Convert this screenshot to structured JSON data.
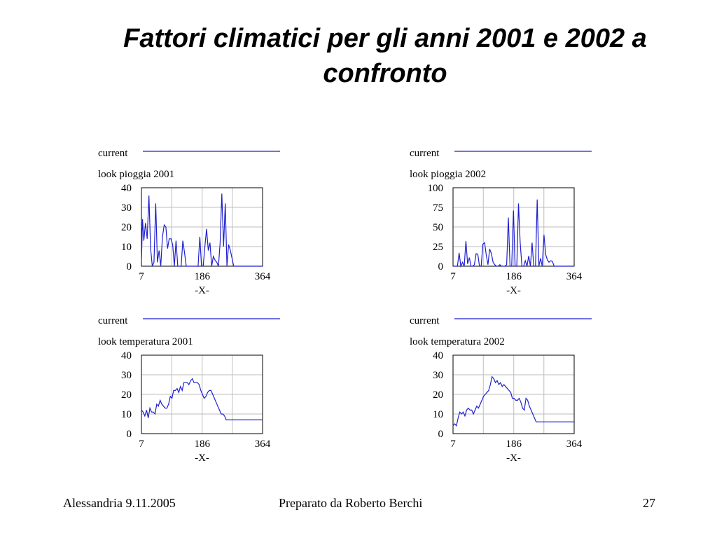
{
  "title": "Fattori climatici per gli anni 2001 e 2002 a confronto",
  "footer": {
    "left": "Alessandria 9.11.2005",
    "center": "Preparato da Roberto Berchi",
    "right": "27"
  },
  "colors": {
    "line": "#1f1fd0",
    "grid": "#bdbdbd",
    "frame": "#000000"
  },
  "chart_data": [
    {
      "type": "line",
      "legend_label": "current",
      "series_name": "look pioggia 2001",
      "xlabel": "-X-",
      "xlim": [
        7,
        364
      ],
      "xticks": [
        7,
        186,
        364
      ],
      "ylim": [
        0,
        40
      ],
      "yticks": [
        0,
        10,
        20,
        30,
        40
      ],
      "grid": true,
      "series": [
        {
          "name": "look pioggia 2001",
          "x": [
            7,
            10,
            14,
            19,
            24,
            29,
            34,
            39,
            44,
            49,
            54,
            59,
            64,
            69,
            74,
            79,
            84,
            89,
            94,
            99,
            104,
            109,
            114,
            119,
            124,
            129,
            134,
            139,
            144,
            149,
            154,
            159,
            164,
            169,
            174,
            179,
            184,
            189,
            194,
            199,
            204,
            209,
            214,
            219,
            224,
            229,
            234,
            239,
            244,
            249,
            254,
            259,
            264,
            269,
            274,
            279,
            284,
            289,
            294,
            299,
            304,
            309,
            314,
            319,
            324,
            329,
            334,
            339,
            344,
            349,
            354,
            359,
            364
          ],
          "values": [
            2,
            24,
            13,
            22,
            14,
            36,
            9,
            0,
            2,
            32,
            2,
            8,
            0,
            15,
            21,
            20,
            9,
            14,
            14,
            11,
            0,
            13,
            0,
            0,
            0,
            13,
            7,
            0,
            0,
            0,
            0,
            0,
            0,
            0,
            0,
            15,
            0,
            0,
            10,
            19,
            8,
            12,
            0,
            5,
            3,
            2,
            0,
            12,
            37,
            10,
            32,
            0,
            11,
            8,
            4,
            0,
            0,
            0,
            0,
            0,
            0,
            0,
            0,
            0,
            0,
            0,
            0,
            0,
            0,
            0,
            0,
            0,
            0
          ]
        }
      ]
    },
    {
      "type": "line",
      "legend_label": "current",
      "series_name": "look pioggia 2002",
      "xlabel": "-X-",
      "xlim": [
        7,
        364
      ],
      "xticks": [
        7,
        186,
        364
      ],
      "ylim": [
        0,
        100
      ],
      "yticks": [
        0,
        25,
        50,
        75,
        100
      ],
      "grid": true,
      "series": [
        {
          "name": "look pioggia 2002",
          "x": [
            7,
            15,
            20,
            25,
            30,
            35,
            40,
            45,
            50,
            55,
            60,
            65,
            70,
            75,
            80,
            85,
            90,
            95,
            100,
            105,
            110,
            115,
            120,
            125,
            130,
            135,
            140,
            145,
            150,
            155,
            160,
            165,
            170,
            175,
            180,
            185,
            190,
            195,
            200,
            205,
            210,
            215,
            220,
            225,
            230,
            235,
            240,
            245,
            250,
            255,
            260,
            265,
            270,
            275,
            280,
            285,
            290,
            295,
            300,
            305,
            310,
            315,
            320,
            325,
            330,
            335,
            340,
            345,
            350,
            355,
            360,
            364
          ],
          "values": [
            0,
            0,
            0,
            17,
            0,
            5,
            0,
            32,
            3,
            11,
            0,
            0,
            2,
            16,
            15,
            0,
            0,
            28,
            30,
            14,
            2,
            22,
            16,
            5,
            2,
            0,
            0,
            2,
            0,
            0,
            0,
            2,
            62,
            0,
            0,
            71,
            0,
            0,
            80,
            30,
            0,
            0,
            7,
            0,
            13,
            0,
            30,
            0,
            0,
            85,
            0,
            10,
            0,
            40,
            15,
            8,
            5,
            7,
            6,
            0,
            0,
            0,
            0,
            0,
            0,
            0,
            0,
            0,
            0,
            0,
            0,
            0
          ]
        }
      ]
    },
    {
      "type": "line",
      "legend_label": "current",
      "series_name": "look temperatura 2001",
      "xlabel": "-X-",
      "xlim": [
        7,
        364
      ],
      "xticks": [
        7,
        186,
        364
      ],
      "ylim": [
        0,
        40
      ],
      "yticks": [
        0,
        10,
        20,
        30,
        40
      ],
      "grid": true,
      "series": [
        {
          "name": "look temperatura 2001",
          "x": [
            7,
            12,
            17,
            22,
            27,
            32,
            37,
            42,
            47,
            52,
            57,
            62,
            67,
            72,
            77,
            82,
            87,
            92,
            97,
            102,
            107,
            112,
            117,
            122,
            127,
            132,
            137,
            142,
            147,
            152,
            157,
            162,
            167,
            172,
            177,
            182,
            187,
            192,
            197,
            202,
            207,
            212,
            217,
            222,
            227,
            232,
            237,
            242,
            247,
            252,
            257,
            262,
            267,
            272,
            277,
            282,
            287,
            292,
            297,
            302,
            307,
            312,
            317,
            322,
            327,
            332,
            337,
            342,
            347,
            352,
            357,
            364
          ],
          "values": [
            12,
            11,
            9,
            12,
            8,
            13,
            11,
            11,
            10,
            15,
            14,
            17,
            15,
            14,
            13,
            13,
            15,
            19,
            18,
            22,
            22,
            23,
            21,
            24,
            22,
            26,
            26,
            26,
            25,
            27,
            28,
            26,
            26,
            26,
            25,
            22,
            20,
            18,
            19,
            21,
            22,
            22,
            20,
            18,
            16,
            14,
            12,
            10,
            10,
            9,
            7,
            7,
            7,
            7,
            7,
            7,
            7,
            7,
            7,
            7,
            7,
            7,
            7,
            7,
            7,
            7,
            7,
            7,
            7,
            7,
            7,
            7
          ]
        }
      ]
    },
    {
      "type": "line",
      "legend_label": "current",
      "series_name": "look temperatura 2002",
      "xlabel": "-X-",
      "xlim": [
        7,
        364
      ],
      "xticks": [
        7,
        186,
        364
      ],
      "ylim": [
        0,
        40
      ],
      "yticks": [
        0,
        10,
        20,
        30,
        40
      ],
      "grid": true,
      "series": [
        {
          "name": "look temperatura 2002",
          "x": [
            7,
            12,
            17,
            22,
            27,
            32,
            37,
            42,
            47,
            52,
            57,
            62,
            67,
            72,
            77,
            82,
            87,
            92,
            97,
            102,
            107,
            112,
            117,
            122,
            127,
            132,
            137,
            142,
            147,
            152,
            157,
            162,
            167,
            172,
            177,
            182,
            187,
            192,
            197,
            202,
            207,
            212,
            217,
            222,
            227,
            232,
            237,
            242,
            247,
            252,
            257,
            262,
            267,
            272,
            277,
            282,
            287,
            292,
            297,
            302,
            307,
            312,
            317,
            322,
            327,
            332,
            337,
            342,
            347,
            352,
            357,
            364
          ],
          "values": [
            4,
            5,
            4,
            8,
            11,
            10,
            11,
            9,
            12,
            13,
            12,
            12,
            10,
            12,
            14,
            13,
            15,
            17,
            19,
            20,
            21,
            22,
            25,
            29,
            28,
            26,
            27,
            25,
            26,
            24,
            25,
            24,
            23,
            22,
            21,
            18,
            18,
            17,
            17,
            18,
            16,
            13,
            12,
            18,
            17,
            14,
            12,
            10,
            8,
            6,
            6,
            6,
            6,
            6,
            6,
            6,
            6,
            6,
            6,
            6,
            6,
            6,
            6,
            6,
            6,
            6,
            6,
            6,
            6,
            6,
            6,
            6
          ]
        }
      ]
    }
  ]
}
